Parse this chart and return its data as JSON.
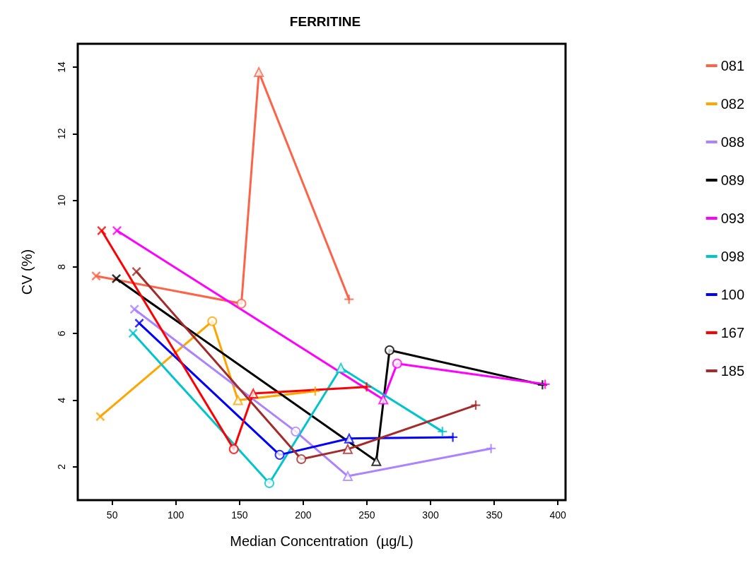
{
  "chart_data": {
    "type": "line",
    "title": "FERRITINE",
    "xlabel": "Median Concentration  (µg/L)",
    "ylabel": "CV (%)",
    "xlim": [
      23,
      406
    ],
    "xticks": [
      50,
      100,
      150,
      200,
      250,
      300,
      350,
      400
    ],
    "ylim": [
      1.0,
      14.7
    ],
    "yticks": [
      2,
      4,
      6,
      8,
      10,
      12,
      14
    ],
    "legend": "right",
    "series": [
      {
        "name": "081",
        "color": "#ff6347",
        "marker": "none",
        "x": [
          37.4,
          151.5,
          165.2,
          236
        ],
        "values": [
          7.73,
          6.9,
          13.85,
          7.03
        ]
      },
      {
        "name": "082",
        "color": "#ffa500",
        "marker": "none",
        "x": [
          40.7,
          128.6,
          148.8,
          209.4
        ],
        "values": [
          3.51,
          6.37,
          4.0,
          4.27
        ]
      },
      {
        "name": "088",
        "color": "#ab82ff",
        "marker": "none",
        "x": [
          67.5,
          194.1,
          235,
          347.5
        ],
        "values": [
          6.73,
          3.06,
          1.72,
          2.55
        ]
      },
      {
        "name": "089",
        "color": "#000000",
        "marker": "none",
        "x": [
          53.3,
          257.4,
          267.8,
          387.9
        ],
        "values": [
          7.65,
          2.17,
          5.5,
          4.46
        ]
      },
      {
        "name": "093",
        "color": "#ff00ff",
        "marker": "none",
        "x": [
          53.8,
          262.9,
          273.8,
          390
        ],
        "values": [
          9.09,
          4.02,
          5.1,
          4.48
        ]
      },
      {
        "name": "098",
        "color": "#00c5cd",
        "marker": "none",
        "x": [
          66.4,
          173.4,
          229.6,
          309.3
        ],
        "values": [
          6.01,
          1.51,
          4.97,
          3.06
        ]
      },
      {
        "name": "100",
        "color": "#0000ff",
        "marker": "none",
        "x": [
          71.3,
          181.5,
          236.1,
          317.5
        ],
        "values": [
          6.31,
          2.36,
          2.85,
          2.89
        ]
      },
      {
        "name": "167",
        "color": "#ff0000",
        "marker": "none",
        "x": [
          41.8,
          145.5,
          160.8,
          249.8
        ],
        "values": [
          9.09,
          2.53,
          4.2,
          4.4
        ]
      },
      {
        "name": "185",
        "color": "#a52a2a",
        "marker": "none",
        "x": [
          69.1,
          198.5,
          235,
          335.5
        ],
        "values": [
          7.86,
          2.23,
          2.53,
          3.85
        ]
      },
      {
        "type": "scatter",
        "marker": "cross",
        "x": [
          37.4,
          40.7,
          67.5,
          53.3,
          53.8,
          66.4,
          71.3,
          41.8,
          69.1
        ],
        "values": [
          7.73,
          3.51,
          6.73,
          7.65,
          9.09,
          6.01,
          6.31,
          9.09,
          7.86
        ],
        "colors": [
          "#ff6347",
          "#ffa500",
          "#ab82ff",
          "#000000",
          "#ff00ff",
          "#00c5cd",
          "#0000ff",
          "#ff0000",
          "#a52a2a"
        ]
      },
      {
        "type": "scatter",
        "marker": "plus",
        "x": [
          236,
          209.4,
          347.5,
          387.9,
          390,
          309.3,
          317.5,
          249.8,
          335.5
        ],
        "values": [
          7.03,
          4.27,
          2.55,
          4.46,
          4.48,
          3.06,
          2.89,
          4.4,
          3.85
        ],
        "colors": [
          "#ff6347",
          "#ffa500",
          "#ab82ff",
          "#000000",
          "#ff00ff",
          "#00c5cd",
          "#0000ff",
          "#ff0000",
          "#a52a2a"
        ]
      },
      {
        "type": "scatter",
        "marker": "triangle",
        "x": [
          165.2,
          148.8,
          235,
          257.4,
          262.9,
          229.6,
          236.1,
          160.8,
          235
        ],
        "values": [
          13.85,
          4.0,
          1.72,
          2.17,
          4.02,
          4.97,
          2.85,
          4.2,
          2.53
        ],
        "colors": [
          "#ff6347",
          "#ffa500",
          "#ab82ff",
          "#000000",
          "#ff00ff",
          "#00c5cd",
          "#0000ff",
          "#ff0000",
          "#a52a2a"
        ]
      },
      {
        "type": "scatter",
        "marker": "circle",
        "x": [
          151.5,
          128.6,
          194.1,
          267.8,
          273.8,
          173.4,
          181.5,
          145.5,
          198.5
        ],
        "values": [
          6.9,
          6.37,
          3.06,
          5.5,
          5.1,
          1.51,
          2.36,
          2.53,
          2.23
        ],
        "colors": [
          "#ff6347",
          "#ffa500",
          "#ab82ff",
          "#000000",
          "#ff00ff",
          "#00c5cd",
          "#0000ff",
          "#ff0000",
          "#a52a2a"
        ]
      }
    ]
  }
}
